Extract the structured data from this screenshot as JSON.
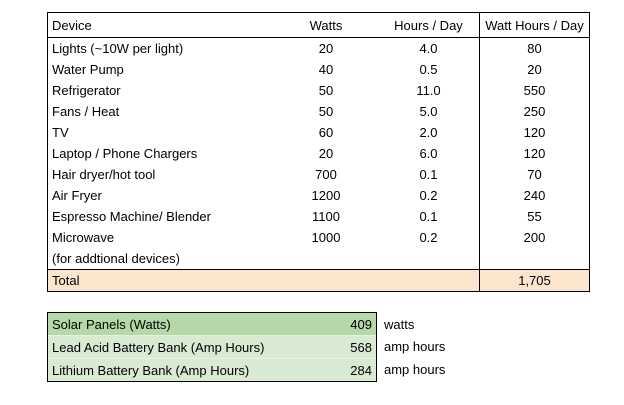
{
  "colors": {
    "total_row_bg": "#fce5cd",
    "summary_dark_green_bg": "#b6d7a8",
    "summary_light_green_bg": "#d9ead3",
    "border": "#000000",
    "text": "#000000"
  },
  "device_table": {
    "headers": [
      "Device",
      "Watts",
      "Hours / Day",
      "Watt Hours / Day"
    ],
    "rows": [
      {
        "device": "Lights (~10W per light)",
        "watts": "20",
        "hours": "4.0",
        "watt_hours": "80"
      },
      {
        "device": "Water Pump",
        "watts": "40",
        "hours": "0.5",
        "watt_hours": "20"
      },
      {
        "device": "Refrigerator",
        "watts": "50",
        "hours": "11.0",
        "watt_hours": "550"
      },
      {
        "device": "Fans / Heat",
        "watts": "50",
        "hours": "5.0",
        "watt_hours": "250"
      },
      {
        "device": "TV",
        "watts": "60",
        "hours": "2.0",
        "watt_hours": "120"
      },
      {
        "device": "Laptop / Phone Chargers",
        "watts": "20",
        "hours": "6.0",
        "watt_hours": "120"
      },
      {
        "device": "Hair dryer/hot tool",
        "watts": "700",
        "hours": "0.1",
        "watt_hours": "70"
      },
      {
        "device": "Air Fryer",
        "watts": "1200",
        "hours": "0.2",
        "watt_hours": "240"
      },
      {
        "device": "Espresso Machine/ Blender",
        "watts": "1100",
        "hours": "0.1",
        "watt_hours": "55"
      },
      {
        "device": "Microwave",
        "watts": "1000",
        "hours": "0.2",
        "watt_hours": "200"
      },
      {
        "device": "(for addtional devices)",
        "watts": "",
        "hours": "",
        "watt_hours": ""
      }
    ],
    "total": {
      "label": "Total",
      "value": "1,705"
    }
  },
  "summary_table": {
    "rows": [
      {
        "label": "Solar Panels (Watts)",
        "value": "409",
        "unit": "watts"
      },
      {
        "label": "Lead Acid Battery Bank (Amp Hours)",
        "value": "568",
        "unit": "amp hours"
      },
      {
        "label": "Lithium Battery Bank (Amp Hours)",
        "value": "284",
        "unit": "amp hours"
      }
    ]
  }
}
